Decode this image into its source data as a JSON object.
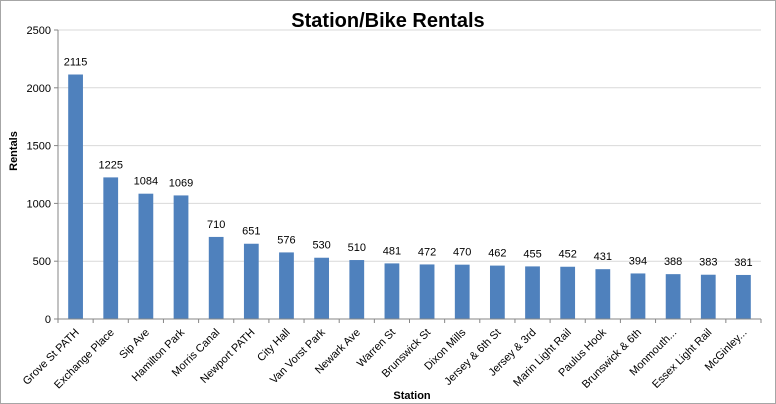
{
  "chart_data": {
    "type": "bar",
    "title": "Station/Bike Rentals",
    "xlabel": "Station",
    "ylabel": "Rentals",
    "ylim": [
      0,
      2500
    ],
    "yticks": [
      0,
      500,
      1000,
      1500,
      2000,
      2500
    ],
    "grid": true,
    "legend": "none",
    "bar_color": "#4f81bd",
    "categories": [
      "Grove St PATH",
      "Exchange Place",
      "Sip Ave",
      "Hamilton Park",
      "Morris Canal",
      "Newport PATH",
      "City Hall",
      "Van Vorst Park",
      "Newark Ave",
      "Warren St",
      "Brunswick St",
      "Dixon Mills",
      "Jersey & 6th St",
      "Jersey & 3rd",
      "Marin Light Rail",
      "Paulus Hook",
      "Brunswick & 6th",
      "Monmouth...",
      "Essex Light Rail",
      "McGinley..."
    ],
    "values": [
      2115,
      1225,
      1084,
      1069,
      710,
      651,
      576,
      530,
      510,
      481,
      472,
      470,
      462,
      455,
      452,
      431,
      394,
      388,
      383,
      381
    ]
  }
}
